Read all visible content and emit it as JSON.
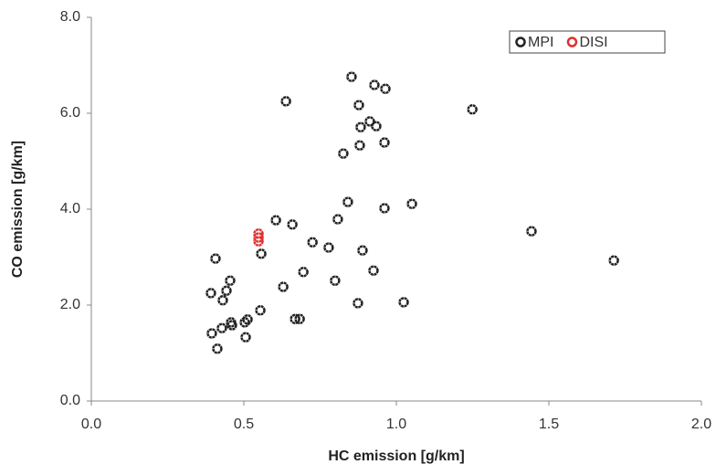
{
  "chart_data": {
    "type": "scatter",
    "x_label": "HC emission [g/km]",
    "y_label": "CO emission [g/km]",
    "xlim": [
      0,
      2
    ],
    "ylim": [
      0,
      8
    ],
    "xticks": [
      {
        "value": 0,
        "label": "0.0"
      },
      {
        "value": 0.5,
        "label": "0.5"
      },
      {
        "value": 1,
        "label": "1.0"
      },
      {
        "value": 1.5,
        "label": "1.5"
      },
      {
        "value": 2,
        "label": "2.0"
      }
    ],
    "yticks": [
      {
        "value": 0,
        "label": "0.0"
      },
      {
        "value": 2,
        "label": "2.0"
      },
      {
        "value": 4,
        "label": "4.0"
      },
      {
        "value": 6,
        "label": "6.0"
      },
      {
        "value": 8,
        "label": "8.0"
      }
    ],
    "legend": "top-right",
    "series": [
      {
        "name": "MPI",
        "color": "#222222",
        "x": [
          0.853,
          0.928,
          0.964,
          0.638,
          0.877,
          1.249,
          0.913,
          0.883,
          0.934,
          0.961,
          0.88,
          0.826,
          0.841,
          1.051,
          0.961,
          0.605,
          0.808,
          0.659,
          1.443,
          0.725,
          0.778,
          0.557,
          0.889,
          0.407,
          1.713,
          0.925,
          0.695,
          0.455,
          0.799,
          0.629,
          0.443,
          0.392,
          0.431,
          0.874,
          1.024,
          0.554,
          0.668,
          0.683,
          0.458,
          0.512,
          0.503,
          0.428,
          0.461,
          0.395,
          0.506,
          0.413
        ],
        "values": [
          6.76,
          6.59,
          6.51,
          6.25,
          6.17,
          6.08,
          5.83,
          5.71,
          5.73,
          5.39,
          5.33,
          5.16,
          4.15,
          4.11,
          4.02,
          3.77,
          3.79,
          3.68,
          3.54,
          3.31,
          3.2,
          3.07,
          3.14,
          2.97,
          2.93,
          2.72,
          2.69,
          2.51,
          2.51,
          2.38,
          2.3,
          2.25,
          2.1,
          2.04,
          2.06,
          1.89,
          1.71,
          1.71,
          1.64,
          1.7,
          1.64,
          1.52,
          1.58,
          1.41,
          1.33,
          1.09
        ]
      },
      {
        "name": "DISI",
        "color": "#e03030",
        "x": [
          0.548,
          0.548,
          0.548
        ],
        "values": [
          3.49,
          3.41,
          3.33
        ]
      }
    ]
  }
}
